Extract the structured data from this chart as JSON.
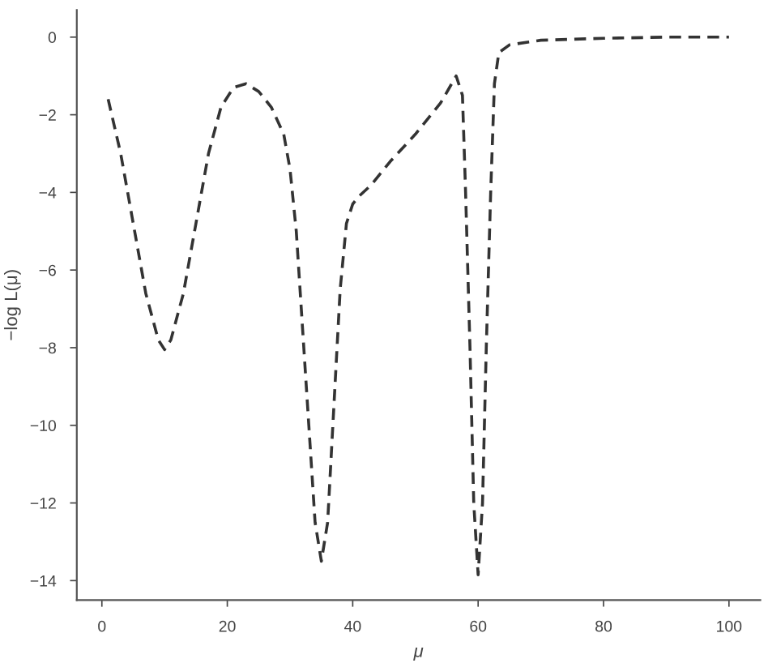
{
  "chart_data": {
    "type": "line",
    "xlabel": "μ",
    "ylabel": "−log L(μ)",
    "x": [
      1,
      3,
      5,
      7,
      9,
      10,
      11,
      13,
      15,
      17,
      19,
      21,
      23,
      25,
      27,
      29,
      30,
      31,
      32,
      33,
      34,
      35,
      36,
      37,
      38,
      39,
      40,
      41,
      43,
      46,
      50,
      54,
      56.5,
      57.5,
      58,
      58.7,
      59.3,
      60,
      60.7,
      61.3,
      62,
      62.6,
      63.3,
      65,
      70,
      80,
      90,
      100
    ],
    "series": [
      {
        "color": "#333333",
        "values": [
          -1.6,
          -3.0,
          -4.8,
          -6.6,
          -7.8,
          -8.05,
          -7.8,
          -6.6,
          -4.8,
          -3.0,
          -1.8,
          -1.3,
          -1.2,
          -1.4,
          -1.8,
          -2.5,
          -3.4,
          -5.0,
          -7.5,
          -10.0,
          -12.5,
          -13.5,
          -12.5,
          -9.5,
          -6.5,
          -4.8,
          -4.3,
          -4.1,
          -3.8,
          -3.2,
          -2.5,
          -1.7,
          -1.0,
          -1.5,
          -4.0,
          -8.0,
          -12.0,
          -13.85,
          -12.0,
          -8.0,
          -4.0,
          -1.2,
          -0.4,
          -0.2,
          -0.08,
          -0.03,
          0,
          0
        ]
      }
    ],
    "xlim": [
      -4,
      105
    ],
    "ylim": [
      -14.5,
      0.7
    ],
    "xticks": [
      0,
      20,
      40,
      60,
      80,
      100
    ],
    "yticks": [
      0,
      -2,
      -4,
      -6,
      -8,
      -10,
      -12,
      -14
    ],
    "line_style": "dashed",
    "marker": "none",
    "grid": false,
    "legend": false
  }
}
